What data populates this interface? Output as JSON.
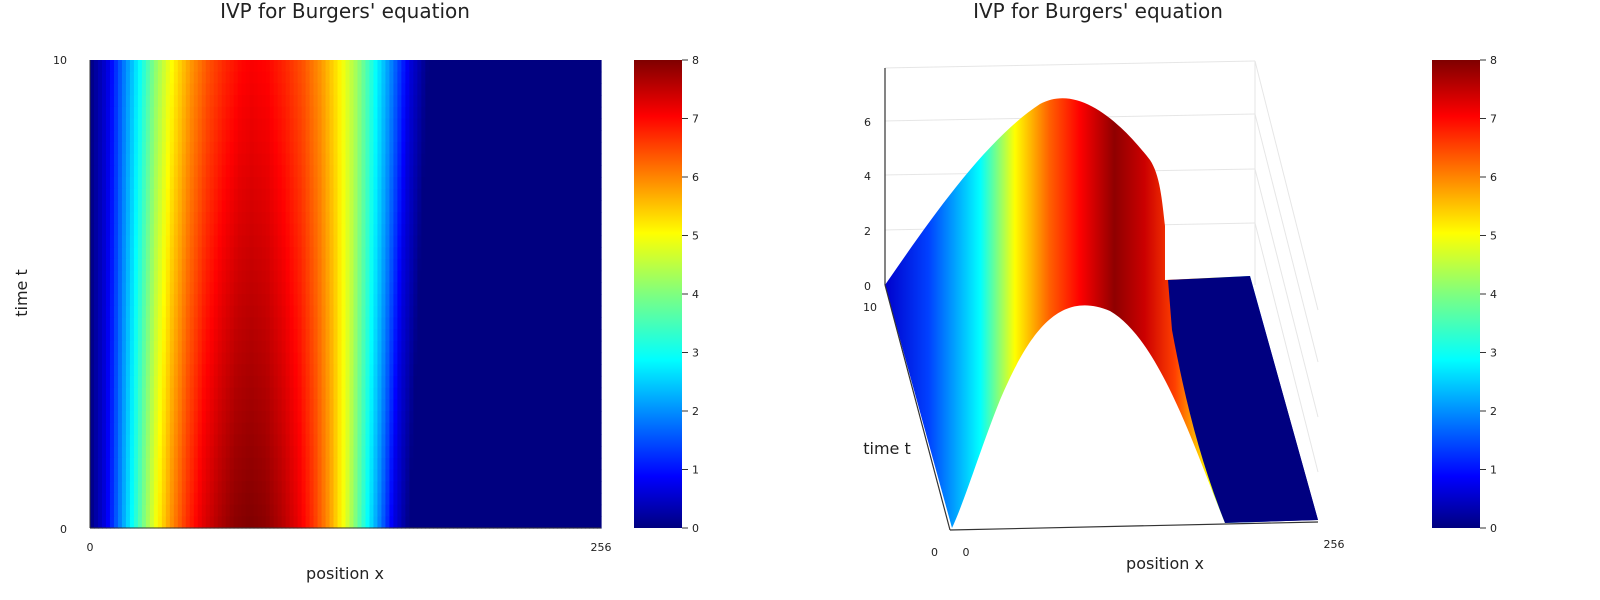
{
  "chart_data": [
    {
      "type": "heatmap",
      "title": "IVP for Burgers' equation",
      "xlabel": "position x",
      "ylabel": "time t",
      "xlim": [
        0,
        256
      ],
      "ylim": [
        0,
        10
      ],
      "x_ticks": [
        "0",
        "256"
      ],
      "y_ticks": [
        "0",
        "10"
      ],
      "colorscale": "jet",
      "clim": [
        0,
        8
      ],
      "colorbar_ticks": [
        "0",
        "1",
        "2",
        "3",
        "4",
        "5",
        "6",
        "7",
        "8"
      ],
      "profile_t0": {
        "x": [
          0,
          8,
          16,
          24,
          32,
          40,
          48,
          56,
          64,
          72,
          80,
          88,
          96,
          104,
          112,
          120,
          128,
          136,
          144,
          152,
          160,
          168,
          176,
          184,
          192,
          200,
          208,
          216,
          224,
          232,
          240,
          248,
          256
        ],
        "u": [
          0.0,
          0.8,
          2.2,
          3.5,
          4.8,
          5.8,
          6.6,
          7.2,
          7.6,
          7.9,
          8.0,
          7.9,
          7.6,
          7.2,
          6.6,
          5.8,
          4.8,
          3.5,
          2.2,
          0.8,
          0.0,
          0.0,
          0.0,
          0.0,
          0.0,
          0.0,
          0.0,
          0.0,
          0.0,
          0.0,
          0.0,
          0.0,
          0.0
        ]
      }
    },
    {
      "type": "surface",
      "title": "IVP for Burgers' equation",
      "xlabel": "position x",
      "ylabel": "time t",
      "x_ticks": [
        "0",
        "256"
      ],
      "y_ticks": [
        "0",
        "10"
      ],
      "z_ticks": [
        "0",
        "2",
        "4",
        "6"
      ],
      "zlim": [
        0,
        8
      ],
      "colorscale": "jet",
      "clim": [
        0,
        8
      ],
      "colorbar_ticks": [
        "0",
        "1",
        "2",
        "3",
        "4",
        "5",
        "6",
        "7",
        "8"
      ]
    }
  ]
}
